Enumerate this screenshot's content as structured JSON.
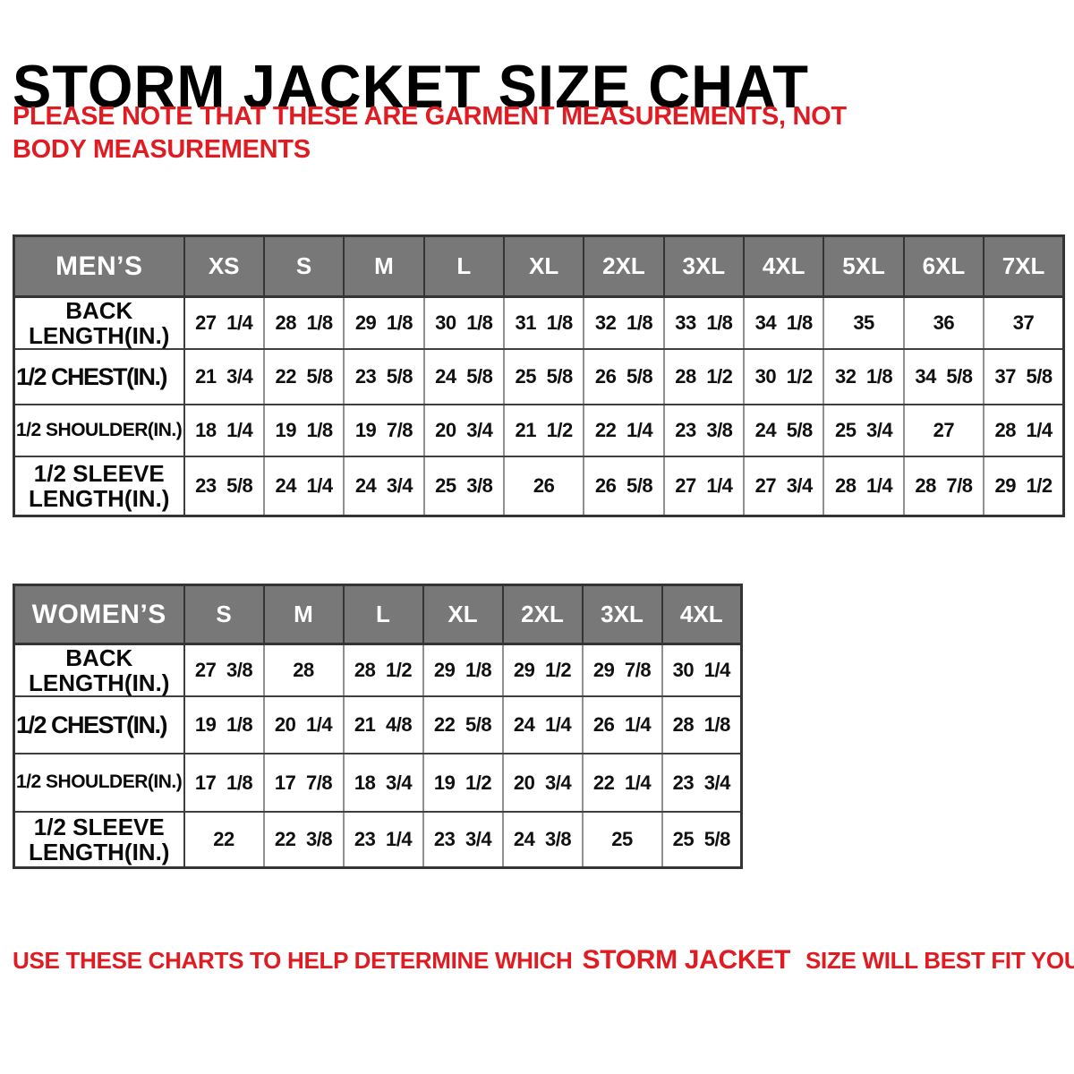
{
  "title": "STORM JACKET SIZE CHAT",
  "note": "PLEASE NOTE THAT THESE ARE GARMENT MEASUREMENTS, NOT BODY MEASUREMENTS",
  "footer": {
    "prefix": "USE THESE CHARTS TO HELP DETERMINE WHICH",
    "brand": "STORM JACKET",
    "suffix": "SIZE WILL BEST FIT YOU."
  },
  "colors": {
    "accent_red": "#e11b22",
    "header_gray": "#787878",
    "header_text": "#ffffff",
    "border_dark": "#343434"
  },
  "tables": [
    {
      "id": "mens",
      "group_label": "MEN’S",
      "sizes": [
        "XS",
        "S",
        "M",
        "L",
        "XL",
        "2XL",
        "3XL",
        "4XL",
        "5XL",
        "6XL",
        "7XL"
      ],
      "rows": [
        {
          "label": "BACK LENGTH(IN.)",
          "label_lines": [
            "BACK",
            "LENGTH(IN.)"
          ],
          "values": [
            "27 1/4",
            "28 1/8",
            "29 1/8",
            "30 1/8",
            "31 1/8",
            "32 1/8",
            "33 1/8",
            "34 1/8",
            "35",
            "36",
            "37"
          ]
        },
        {
          "label": "1/2 CHEST(IN.)",
          "label_lines": [
            "1/2 CHEST(IN.)"
          ],
          "values": [
            "21 3/4",
            "22 5/8",
            "23 5/8",
            "24 5/8",
            "25 5/8",
            "26 5/8",
            "28 1/2",
            "30 1/2",
            "32 1/8",
            "34 5/8",
            "37 5/8"
          ]
        },
        {
          "label": "1/2 SHOULDER(IN.)",
          "label_lines": [
            "1/2 SHOULDER(IN.)"
          ],
          "values": [
            "18 1/4",
            "19 1/8",
            "19 7/8",
            "20 3/4",
            "21 1/2",
            "22 1/4",
            "23 3/8",
            "24 5/8",
            "25 3/4",
            "27",
            "28 1/4"
          ]
        },
        {
          "label": "1/2 SLEEVE LENGTH(IN.)",
          "label_lines": [
            "1/2 SLEEVE",
            "LENGTH(IN.)"
          ],
          "values": [
            "23 5/8",
            "24 1/4",
            "24 3/4",
            "25 3/8",
            "26",
            "26 5/8",
            "27 1/4",
            "27 3/4",
            "28 1/4",
            "28 7/8",
            "29 1/2"
          ]
        }
      ]
    },
    {
      "id": "womens",
      "group_label": "WOMEN’S",
      "sizes": [
        "S",
        "M",
        "L",
        "XL",
        "2XL",
        "3XL",
        "4XL"
      ],
      "rows": [
        {
          "label": "BACK LENGTH(IN.)",
          "label_lines": [
            "BACK",
            "LENGTH(IN.)"
          ],
          "values": [
            "27 3/8",
            "28",
            "28 1/2",
            "29 1/8",
            "29 1/2",
            "29 7/8",
            "30 1/4"
          ]
        },
        {
          "label": "1/2 CHEST(IN.)",
          "label_lines": [
            "1/2 CHEST(IN.)"
          ],
          "values": [
            "19 1/8",
            "20 1/4",
            "21 4/8",
            "22 5/8",
            "24 1/4",
            "26 1/4",
            "28 1/8"
          ]
        },
        {
          "label": "1/2 SHOULDER(IN.)",
          "label_lines": [
            "1/2 SHOULDER(IN.)"
          ],
          "values": [
            "17 1/8",
            "17 7/8",
            "18 3/4",
            "19 1/2",
            "20 3/4",
            "22 1/4",
            "23 3/4"
          ]
        },
        {
          "label": "1/2 SLEEVE LENGTH(IN.)",
          "label_lines": [
            "1/2 SLEEVE",
            "LENGTH(IN.)"
          ],
          "values": [
            "22",
            "22 3/8",
            "23 1/4",
            "23 3/4",
            "24 3/8",
            "25",
            "25 5/8"
          ]
        }
      ]
    }
  ]
}
